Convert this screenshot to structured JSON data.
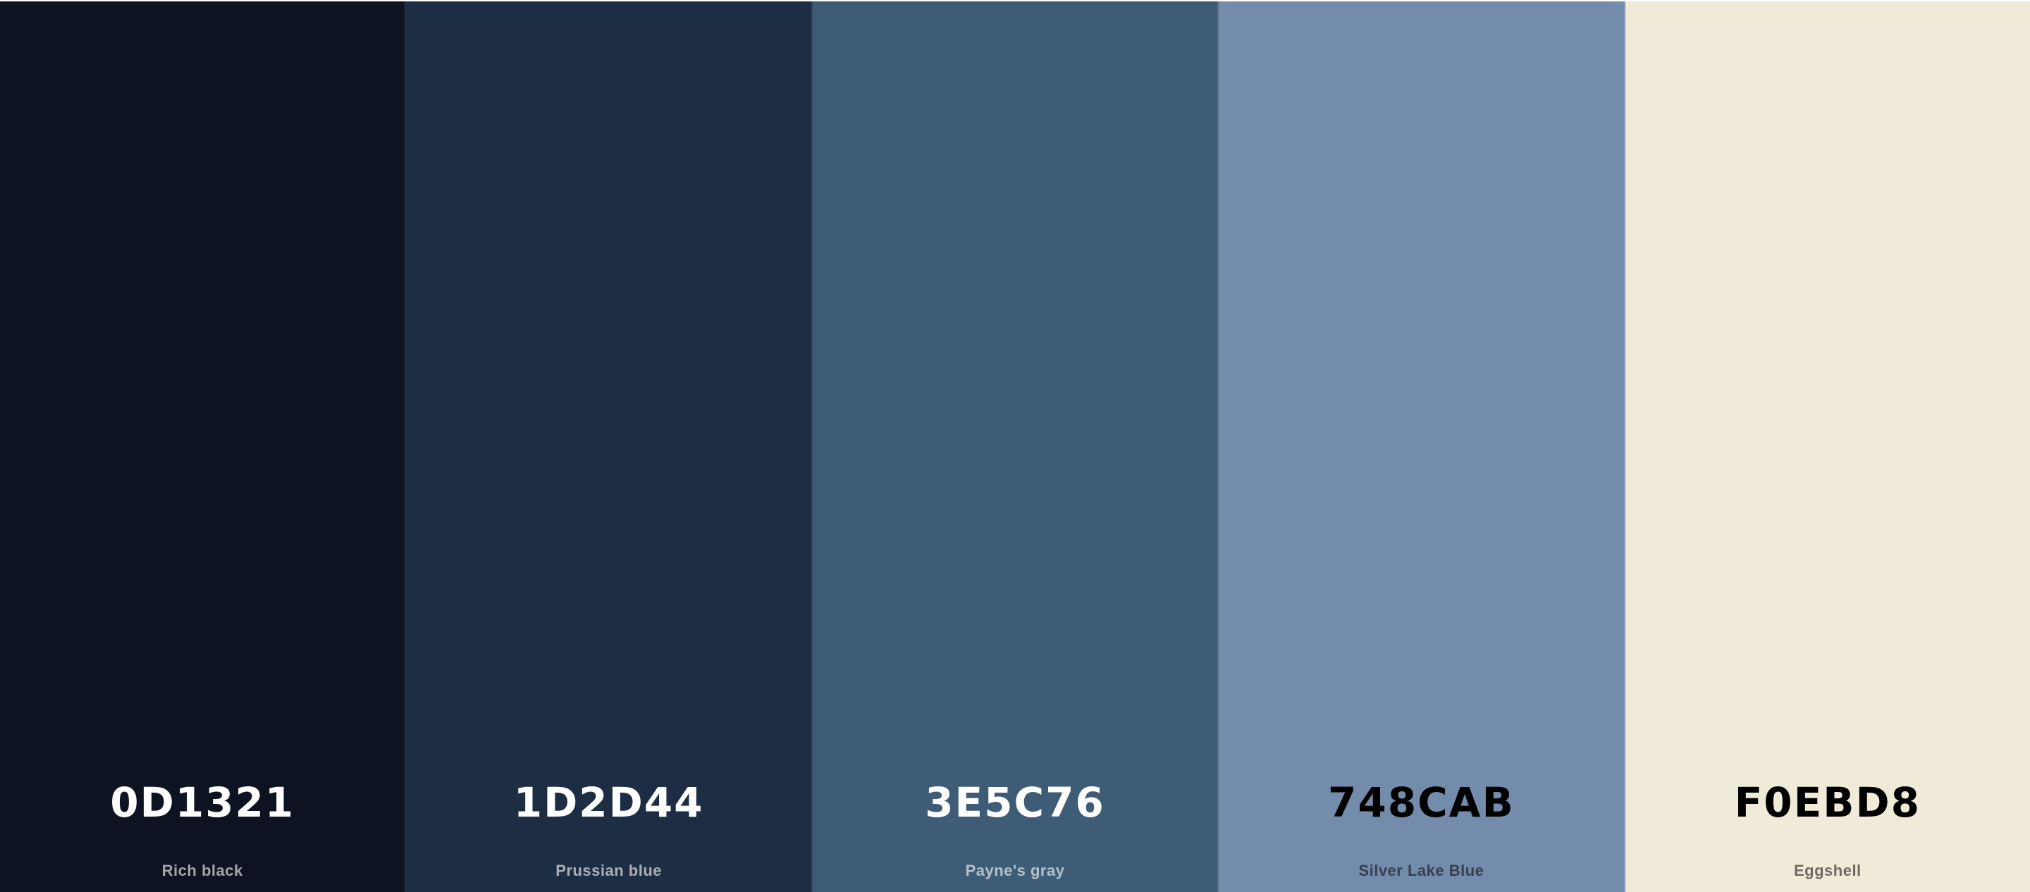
{
  "palette": {
    "swatches": [
      {
        "hex": "0D1321",
        "name": "Rich black",
        "color": "#0D1321",
        "text": "light"
      },
      {
        "hex": "1D2D44",
        "name": "Prussian blue",
        "color": "#1D2D44",
        "text": "light"
      },
      {
        "hex": "3E5C76",
        "name": "Payne's gray",
        "color": "#3E5C76",
        "text": "light"
      },
      {
        "hex": "748CAB",
        "name": "Silver Lake Blue",
        "color": "#748CAB",
        "text": "dark"
      },
      {
        "hex": "F0EBD8",
        "name": "Eggshell",
        "color": "#F0EBD8",
        "text": "dark"
      }
    ]
  }
}
